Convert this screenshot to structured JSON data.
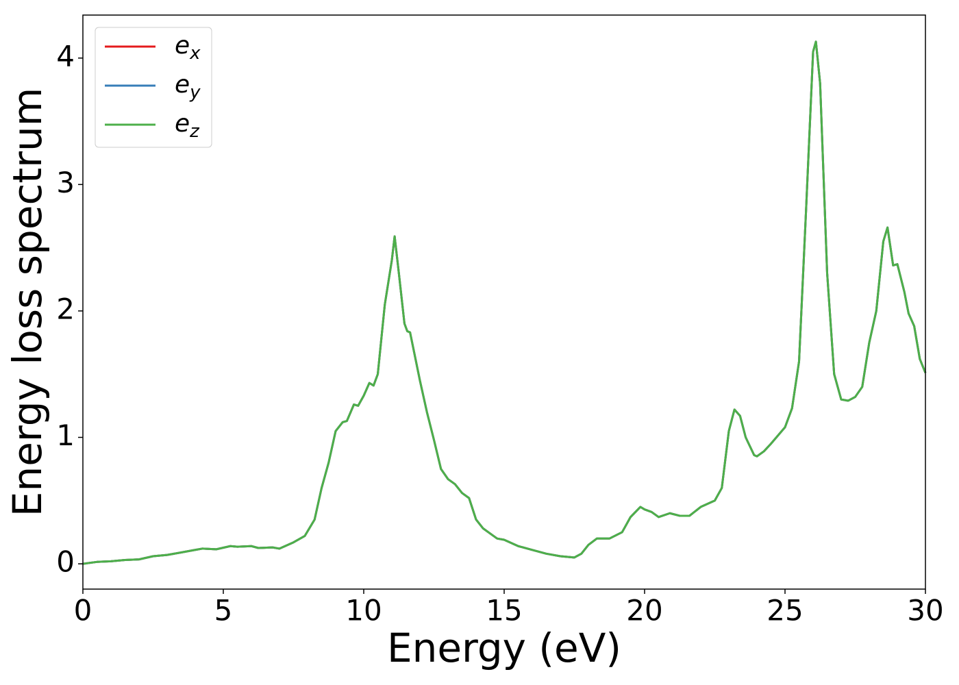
{
  "chart_data": {
    "type": "line",
    "xlabel": "Energy (eV)",
    "ylabel": "Energy loss spectrum",
    "xlim": [
      0,
      30
    ],
    "xticks": [
      0,
      5,
      10,
      15,
      20,
      25,
      30
    ],
    "ylim": [
      -0.2,
      4.34
    ],
    "yticks": [
      0,
      1,
      2,
      3,
      4
    ],
    "grid": false,
    "legend": "upper left",
    "x": [
      0,
      0.5,
      1,
      1.5,
      2,
      2.5,
      3,
      3.5,
      4,
      4.25,
      4.75,
      5.25,
      5.5,
      6,
      6.25,
      6.75,
      7,
      7.5,
      7.9,
      8.25,
      8.5,
      8.75,
      9,
      9.25,
      9.4,
      9.65,
      9.8,
      10,
      10.2,
      10.35,
      10.5,
      10.75,
      11,
      11.1,
      11.25,
      11.45,
      11.55,
      11.65,
      12,
      12.25,
      12.5,
      12.75,
      13,
      13.25,
      13.5,
      13.75,
      14,
      14.25,
      14.5,
      14.75,
      15,
      15.5,
      16,
      16.5,
      17,
      17.5,
      17.75,
      18,
      18.3,
      18.75,
      19.2,
      19.5,
      19.85,
      20,
      20.25,
      20.5,
      20.9,
      21.25,
      21.6,
      22,
      22.5,
      22.75,
      23,
      23.2,
      23.4,
      23.6,
      23.9,
      24,
      24.25,
      24.5,
      25,
      25.25,
      25.5,
      25.75,
      26,
      26.1,
      26.25,
      26.5,
      26.75,
      27,
      27.25,
      27.5,
      27.75,
      28,
      28.25,
      28.5,
      28.65,
      28.85,
      29,
      29.25,
      29.4,
      29.6,
      29.8,
      30
    ],
    "series": [
      {
        "name": "e_x",
        "color": "#e41a1c",
        "values": [
          0,
          0.015,
          0.02,
          0.03,
          0.035,
          0.06,
          0.07,
          0.09,
          0.11,
          0.12,
          0.115,
          0.14,
          0.135,
          0.14,
          0.125,
          0.13,
          0.12,
          0.17,
          0.22,
          0.35,
          0.6,
          0.8,
          1.05,
          1.12,
          1.13,
          1.26,
          1.25,
          1.33,
          1.43,
          1.41,
          1.5,
          2.05,
          2.4,
          2.59,
          2.3,
          1.9,
          1.84,
          1.83,
          1.45,
          1.2,
          0.98,
          0.75,
          0.67,
          0.63,
          0.56,
          0.52,
          0.35,
          0.28,
          0.24,
          0.2,
          0.19,
          0.14,
          0.11,
          0.08,
          0.06,
          0.05,
          0.08,
          0.15,
          0.2,
          0.2,
          0.25,
          0.37,
          0.45,
          0.43,
          0.41,
          0.37,
          0.4,
          0.38,
          0.38,
          0.45,
          0.5,
          0.6,
          1.05,
          1.22,
          1.17,
          1.0,
          0.86,
          0.85,
          0.89,
          0.95,
          1.08,
          1.23,
          1.6,
          2.8,
          4.05,
          4.13,
          3.8,
          2.3,
          1.5,
          1.3,
          1.29,
          1.32,
          1.4,
          1.75,
          2.0,
          2.55,
          2.66,
          2.36,
          2.37,
          2.15,
          1.98,
          1.88,
          1.62,
          1.51
        ]
      },
      {
        "name": "e_y",
        "color": "#377eb8",
        "values": [
          0,
          0.015,
          0.02,
          0.03,
          0.035,
          0.06,
          0.07,
          0.09,
          0.11,
          0.12,
          0.115,
          0.14,
          0.135,
          0.14,
          0.125,
          0.13,
          0.12,
          0.17,
          0.22,
          0.35,
          0.6,
          0.8,
          1.05,
          1.12,
          1.13,
          1.26,
          1.25,
          1.33,
          1.43,
          1.41,
          1.5,
          2.05,
          2.4,
          2.59,
          2.3,
          1.9,
          1.84,
          1.83,
          1.45,
          1.2,
          0.98,
          0.75,
          0.67,
          0.63,
          0.56,
          0.52,
          0.35,
          0.28,
          0.24,
          0.2,
          0.19,
          0.14,
          0.11,
          0.08,
          0.06,
          0.05,
          0.08,
          0.15,
          0.2,
          0.2,
          0.25,
          0.37,
          0.45,
          0.43,
          0.41,
          0.37,
          0.4,
          0.38,
          0.38,
          0.45,
          0.5,
          0.6,
          1.05,
          1.22,
          1.17,
          1.0,
          0.86,
          0.85,
          0.89,
          0.95,
          1.08,
          1.23,
          1.6,
          2.8,
          4.05,
          4.13,
          3.8,
          2.3,
          1.5,
          1.3,
          1.29,
          1.32,
          1.4,
          1.75,
          2.0,
          2.55,
          2.66,
          2.36,
          2.37,
          2.15,
          1.98,
          1.88,
          1.62,
          1.51
        ]
      },
      {
        "name": "e_z",
        "color": "#4daf4a",
        "values": [
          0,
          0.015,
          0.02,
          0.03,
          0.035,
          0.06,
          0.07,
          0.09,
          0.11,
          0.12,
          0.115,
          0.14,
          0.135,
          0.14,
          0.125,
          0.13,
          0.12,
          0.17,
          0.22,
          0.35,
          0.6,
          0.8,
          1.05,
          1.12,
          1.13,
          1.26,
          1.25,
          1.33,
          1.43,
          1.41,
          1.5,
          2.05,
          2.4,
          2.59,
          2.3,
          1.9,
          1.84,
          1.83,
          1.45,
          1.2,
          0.98,
          0.75,
          0.67,
          0.63,
          0.56,
          0.52,
          0.35,
          0.28,
          0.24,
          0.2,
          0.19,
          0.14,
          0.11,
          0.08,
          0.06,
          0.05,
          0.08,
          0.15,
          0.2,
          0.2,
          0.25,
          0.37,
          0.45,
          0.43,
          0.41,
          0.37,
          0.4,
          0.38,
          0.38,
          0.45,
          0.5,
          0.6,
          1.05,
          1.22,
          1.17,
          1.0,
          0.86,
          0.85,
          0.89,
          0.95,
          1.08,
          1.23,
          1.6,
          2.8,
          4.05,
          4.13,
          3.8,
          2.3,
          1.5,
          1.3,
          1.29,
          1.32,
          1.4,
          1.75,
          2.0,
          2.55,
          2.66,
          2.36,
          2.37,
          2.15,
          1.98,
          1.88,
          1.62,
          1.51
        ]
      }
    ]
  }
}
